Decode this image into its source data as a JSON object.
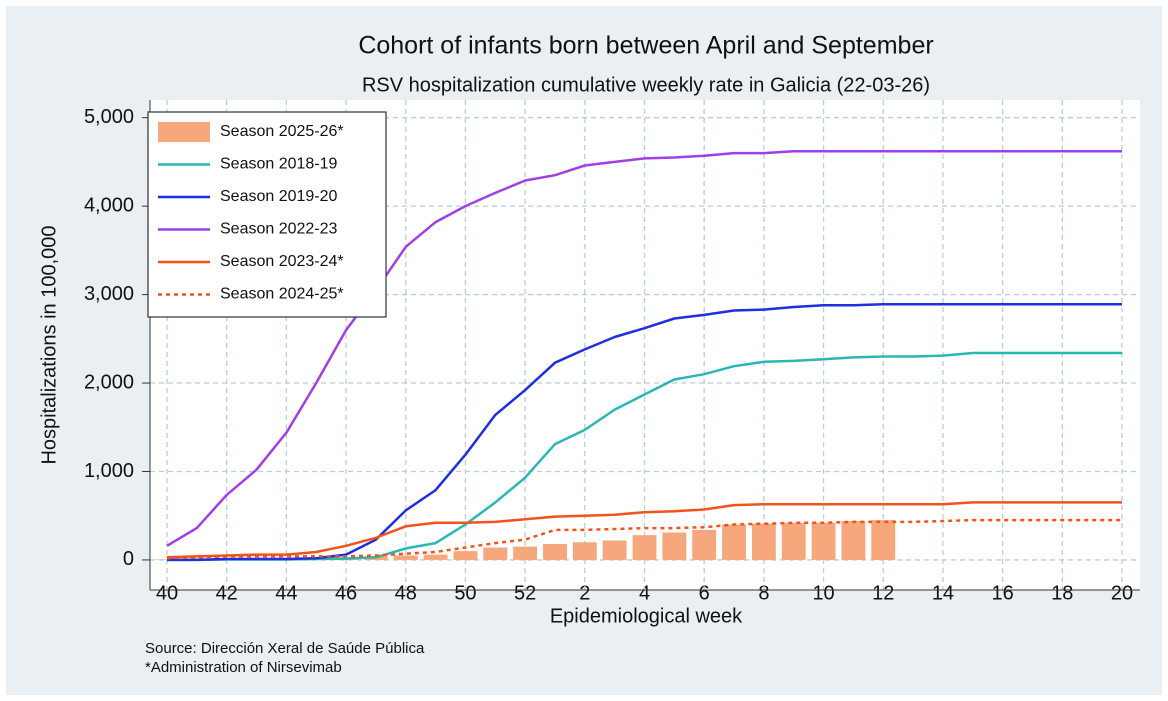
{
  "chart_data": {
    "type": "line",
    "title": "Cohort of infants born between April and September",
    "subtitle": "RSV hospitalization cumulative weekly rate in Galicia (22-03-26)",
    "x_label": "Epidemiological week",
    "y_label": "Hospitalizations in 100,000",
    "notes": [
      "Source: Dirección Xeral de Saúde Pública",
      "*Administration of Nirsevimab"
    ],
    "categories": [
      "40",
      null,
      "42",
      null,
      "44",
      null,
      "46",
      null,
      "48",
      null,
      "50",
      null,
      "52",
      null,
      "2",
      null,
      "4",
      null,
      "6",
      null,
      "8",
      null,
      "10",
      null,
      "12",
      null,
      "14",
      null,
      "16",
      null,
      "18",
      null,
      "20"
    ],
    "ylim": [
      -340,
      5200
    ],
    "yticks": [
      0,
      {
        "value": 1000,
        "label": "1,000"
      },
      {
        "value": 2000,
        "label": "2,000"
      },
      {
        "value": 3000,
        "label": "3,000"
      },
      {
        "value": 4000,
        "label": "4,000"
      },
      {
        "value": 5000,
        "label": "5,000"
      }
    ],
    "grid": true,
    "legend": "top-left",
    "series": [
      {
        "name": "Season 2025-26*",
        "kind": "bar",
        "color": "#f7a77c",
        "values": [
          5,
          10,
          15,
          20,
          20,
          30,
          30,
          40,
          50,
          60,
          100,
          140,
          150,
          180,
          200,
          220,
          280,
          310,
          340,
          400,
          410,
          420,
          420,
          440,
          450,
          null,
          null,
          null,
          null,
          null,
          null,
          null,
          null
        ]
      },
      {
        "name": "Season 2018-19",
        "color": "#2ab7b3",
        "style": "solid",
        "values": [
          0,
          0,
          5,
          5,
          5,
          10,
          15,
          30,
          130,
          190,
          400,
          650,
          930,
          1310,
          1470,
          1700,
          1870,
          2040,
          2100,
          2190,
          2240,
          2250,
          2270,
          2290,
          2300,
          2300,
          2310,
          2340,
          2340,
          2340,
          2340,
          2340,
          2340
        ]
      },
      {
        "name": "Season 2019-20",
        "color": "#1f2ee0",
        "style": "solid",
        "values": [
          0,
          0,
          10,
          10,
          10,
          20,
          60,
          230,
          560,
          790,
          1190,
          1640,
          1920,
          2230,
          2380,
          2520,
          2620,
          2730,
          2770,
          2820,
          2830,
          2860,
          2880,
          2880,
          2890,
          2890,
          2890,
          2890,
          2890,
          2890,
          2890,
          2890,
          2890
        ]
      },
      {
        "name": "Season 2022-23",
        "color": "#a23ee8",
        "style": "solid",
        "values": [
          160,
          360,
          735,
          1020,
          1440,
          2000,
          2600,
          3050,
          3540,
          3820,
          4000,
          4150,
          4290,
          4350,
          4460,
          4500,
          4540,
          4550,
          4570,
          4600,
          4600,
          4620,
          4620,
          4620,
          4620,
          4620,
          4620,
          4620,
          4620,
          4620,
          4620,
          4620,
          4620
        ]
      },
      {
        "name": "Season 2023-24*",
        "color": "#f2531c",
        "style": "solid",
        "values": [
          30,
          40,
          50,
          60,
          60,
          90,
          160,
          250,
          380,
          420,
          420,
          430,
          460,
          490,
          500,
          510,
          540,
          550,
          570,
          620,
          630,
          630,
          630,
          630,
          630,
          630,
          630,
          650,
          650,
          650,
          650,
          650,
          650
        ]
      },
      {
        "name": "Season 2024-25*",
        "color": "#f2531c",
        "style": "dotted",
        "values": [
          20,
          30,
          40,
          40,
          40,
          40,
          40,
          50,
          70,
          90,
          140,
          190,
          230,
          340,
          340,
          350,
          360,
          360,
          370,
          400,
          410,
          420,
          420,
          430,
          430,
          430,
          440,
          450,
          450,
          450,
          450,
          450,
          450
        ]
      }
    ]
  }
}
